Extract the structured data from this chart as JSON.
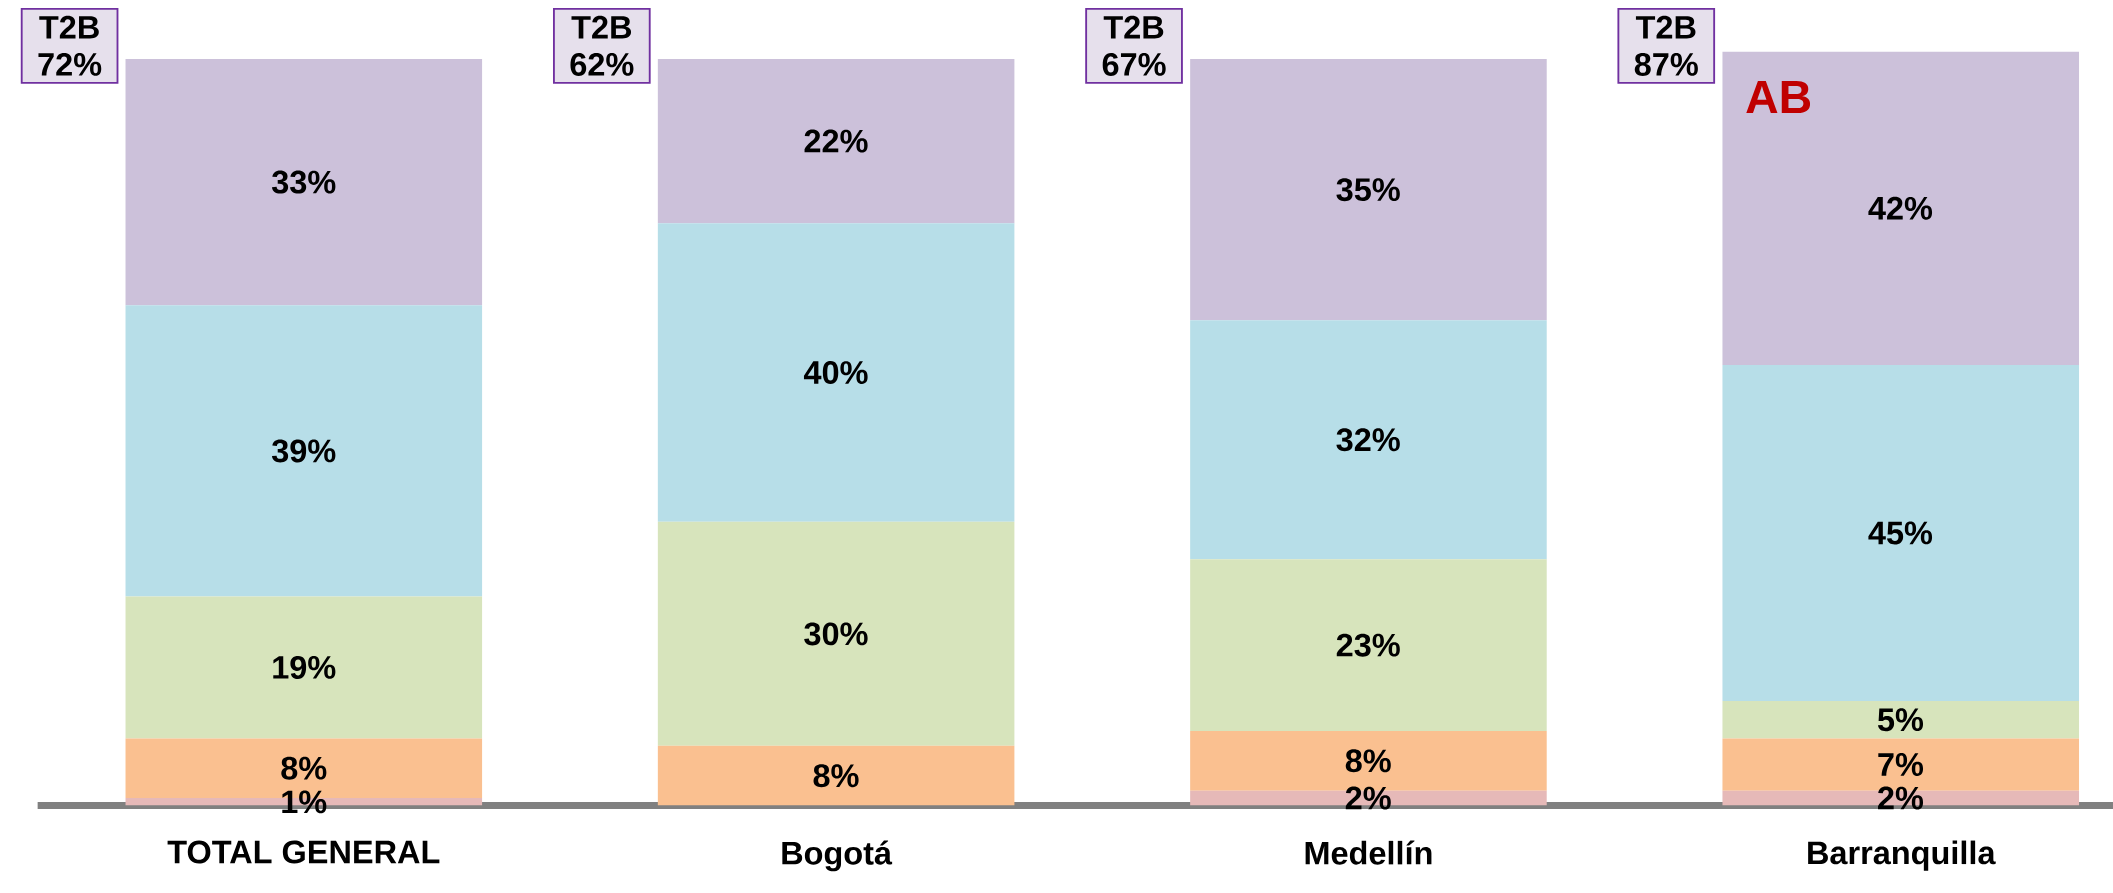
{
  "chart_data": {
    "type": "bar",
    "stacked": true,
    "categories": [
      "TOTAL GENERAL",
      "Bogotá",
      "Medellín",
      "Barranquilla"
    ],
    "ylim": [
      0,
      101
    ],
    "tick_labels": "x",
    "series": [
      {
        "color": "#e6b9b8",
        "values": [
          1,
          null,
          2,
          2
        ],
        "value_labels": [
          "1%",
          null,
          "2%",
          "2%"
        ]
      },
      {
        "color": "#fac090",
        "values": [
          8,
          8,
          8,
          7
        ],
        "value_labels": [
          "8%",
          "8%",
          "8%",
          "7%"
        ]
      },
      {
        "color": "#d7e4bc",
        "values": [
          19,
          30,
          23,
          5
        ],
        "value_labels": [
          "19%",
          "30%",
          "23%",
          "5%"
        ]
      },
      {
        "color": "#b7dee8",
        "values": [
          39,
          40,
          32,
          45
        ],
        "value_labels": [
          "39%",
          "40%",
          "32%",
          "45%"
        ]
      },
      {
        "color": "#ccc1da",
        "values": [
          33,
          22,
          35,
          42
        ],
        "value_labels": [
          "33%",
          "22%",
          "35%",
          "42%"
        ]
      }
    ],
    "annotations": [
      "T2B 72%",
      "T2B 62%",
      "T2B 67%",
      "T2B 87%",
      "AB"
    ]
  }
}
